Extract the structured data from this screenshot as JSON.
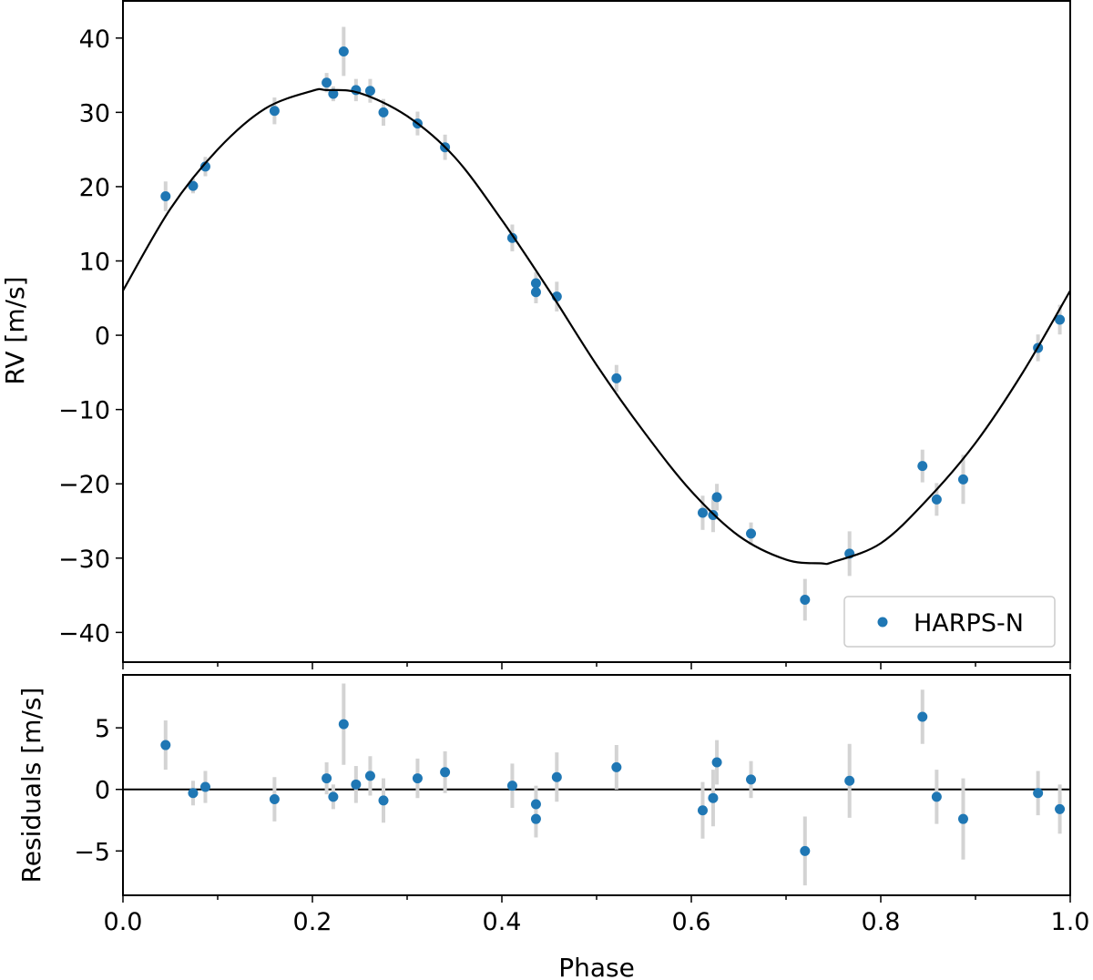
{
  "chart_data": [
    {
      "type": "scatter",
      "panel": "top",
      "xlabel": "",
      "ylabel": "RV [m/s]",
      "xlim": [
        0.0,
        1.0
      ],
      "ylim": [
        -44,
        45
      ],
      "yticks": [
        -40,
        -30,
        -20,
        -10,
        0,
        10,
        20,
        30,
        40
      ],
      "ytick_labels": [
        "−40",
        "−30",
        "−20",
        "−10",
        "0",
        "10",
        "20",
        "30",
        "40"
      ],
      "grid": false,
      "legend": {
        "position": "bottom-right",
        "entries": [
          "HARPS-N"
        ]
      },
      "colors": {
        "points": "#1f77b4",
        "errorbars": "#d3d3d3",
        "model": "#000000"
      },
      "series": [
        {
          "name": "HARPS-N",
          "x": [
            0.045,
            0.074,
            0.087,
            0.16,
            0.215,
            0.222,
            0.233,
            0.246,
            0.261,
            0.275,
            0.311,
            0.34,
            0.411,
            0.436,
            0.436,
            0.458,
            0.521,
            0.612,
            0.623,
            0.627,
            0.663,
            0.72,
            0.767,
            0.844,
            0.859,
            0.887,
            0.966,
            0.989
          ],
          "y": [
            18.7,
            20.1,
            22.7,
            30.2,
            34.0,
            32.5,
            38.2,
            33.0,
            32.9,
            30.0,
            28.5,
            25.3,
            13.1,
            7.0,
            5.8,
            5.2,
            -5.8,
            -23.9,
            -24.2,
            -21.8,
            -26.7,
            -35.6,
            -29.4,
            -17.6,
            -22.1,
            -19.4,
            -1.7,
            2.1
          ],
          "yerr": [
            2.0,
            1.0,
            1.3,
            1.8,
            1.3,
            1.0,
            3.3,
            1.5,
            1.6,
            1.8,
            1.6,
            1.7,
            1.8,
            1.5,
            1.5,
            2.0,
            1.8,
            2.3,
            2.3,
            1.8,
            1.5,
            2.8,
            3.0,
            2.2,
            2.2,
            3.3,
            1.8,
            2.0
          ]
        },
        {
          "name": "",
          "type": "line",
          "x": [
            0,
            0.05,
            0.1,
            0.15,
            0.2,
            0.215,
            0.25,
            0.3,
            0.35,
            0.4,
            0.45,
            0.5,
            0.55,
            0.6,
            0.65,
            0.7,
            0.737,
            0.75,
            0.8,
            0.85,
            0.9,
            0.95,
            1.0
          ],
          "y": [
            6,
            17,
            25,
            30.5,
            32.9,
            33.0,
            32.6,
            29.5,
            24,
            15.5,
            6,
            -4,
            -13,
            -21,
            -27,
            -30.2,
            -30.7,
            -30.5,
            -28,
            -22,
            -14.5,
            -5,
            6
          ]
        }
      ]
    },
    {
      "type": "scatter",
      "panel": "bottom",
      "xlabel": "Phase",
      "ylabel": "Residuals [m/s]",
      "xlim": [
        0.0,
        1.0
      ],
      "ylim": [
        -8.6,
        9.3
      ],
      "xticks": [
        0.0,
        0.2,
        0.4,
        0.6,
        0.8,
        1.0
      ],
      "xtick_labels": [
        "0.0",
        "0.2",
        "0.4",
        "0.6",
        "0.8",
        "1.0"
      ],
      "yticks": [
        -5,
        0,
        5
      ],
      "ytick_labels": [
        "−5",
        "0",
        "5"
      ],
      "zero_line": true,
      "grid": false,
      "series": [
        {
          "name": "HARPS-N",
          "x": [
            0.045,
            0.074,
            0.087,
            0.16,
            0.215,
            0.222,
            0.233,
            0.246,
            0.261,
            0.275,
            0.311,
            0.34,
            0.411,
            0.436,
            0.436,
            0.458,
            0.521,
            0.612,
            0.623,
            0.627,
            0.663,
            0.72,
            0.767,
            0.844,
            0.859,
            0.887,
            0.966,
            0.989
          ],
          "y": [
            3.6,
            -0.3,
            0.2,
            -0.8,
            0.9,
            -0.6,
            5.3,
            0.4,
            1.1,
            -0.9,
            0.9,
            1.4,
            0.3,
            -1.2,
            -2.4,
            1.0,
            1.8,
            -1.7,
            -0.7,
            2.2,
            0.8,
            -5.0,
            0.7,
            5.9,
            -0.6,
            -2.4,
            -0.3,
            -1.6
          ],
          "yerr": [
            2.0,
            1.0,
            1.3,
            1.8,
            1.3,
            1.0,
            3.3,
            1.5,
            1.6,
            1.8,
            1.6,
            1.7,
            1.8,
            1.5,
            1.5,
            2.0,
            1.8,
            2.3,
            2.3,
            1.8,
            1.5,
            2.8,
            3.0,
            2.2,
            2.2,
            3.3,
            1.8,
            2.0
          ]
        }
      ]
    }
  ]
}
